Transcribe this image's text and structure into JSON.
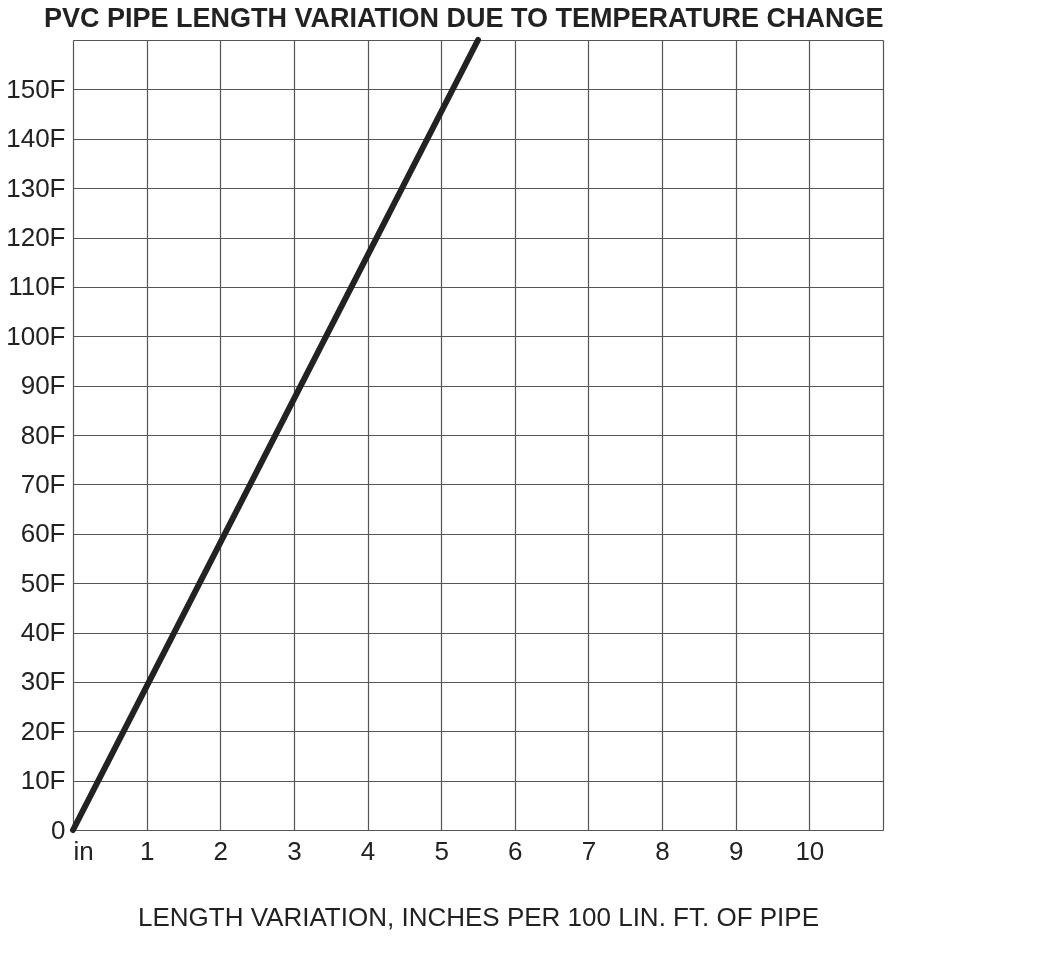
{
  "chart_data": {
    "type": "line",
    "title": "PVC PIPE LENGTH VARIATION DUE TO TEMPERATURE CHANGE",
    "xlabel": "LENGTH VARIATION, INCHES PER 100 LIN. FT. OF PIPE",
    "x": [
      0,
      5.5
    ],
    "series": [
      {
        "color": "#222222",
        "values": [
          0,
          160
        ]
      }
    ],
    "xlim": [
      0,
      11
    ],
    "xticks": [
      {
        "value": 0,
        "label": "in"
      },
      1,
      2,
      3,
      4,
      5,
      6,
      7,
      8,
      9,
      10,
      {
        "value": 11,
        "label": null
      }
    ],
    "ylim": [
      0,
      160
    ],
    "yticks": [
      0,
      {
        "value": 10,
        "label": "10F"
      },
      {
        "value": 20,
        "label": "20F"
      },
      {
        "value": 30,
        "label": "30F"
      },
      {
        "value": 40,
        "label": "40F"
      },
      {
        "value": 50,
        "label": "50F"
      },
      {
        "value": 60,
        "label": "60F"
      },
      {
        "value": 70,
        "label": "70F"
      },
      {
        "value": 80,
        "label": "80F"
      },
      {
        "value": 90,
        "label": "90F"
      },
      {
        "value": 100,
        "label": "100F"
      },
      {
        "value": 110,
        "label": "110F"
      },
      {
        "value": 120,
        "label": "120F"
      },
      {
        "value": 130,
        "label": "130F"
      },
      {
        "value": 140,
        "label": "140F"
      },
      {
        "value": 150,
        "label": "150F"
      },
      {
        "value": 160,
        "label": null
      }
    ],
    "grid": true,
    "marker": "none",
    "line_style": "solid"
  }
}
